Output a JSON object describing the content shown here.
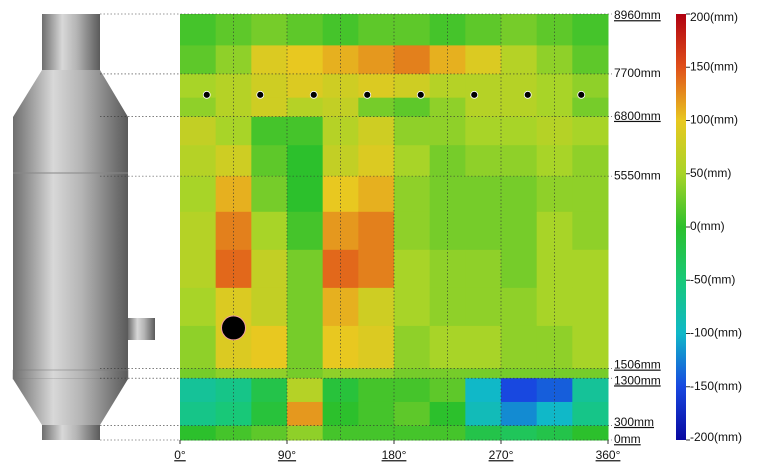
{
  "chart_data": {
    "type": "heatmap",
    "x_bins": [
      0,
      30,
      60,
      90,
      120,
      150,
      180,
      210,
      240,
      270,
      300,
      330,
      360
    ],
    "y_bins": [
      8960,
      8300,
      7700,
      7200,
      6800,
      6200,
      5550,
      4800,
      4000,
      3200,
      2400,
      1506,
      1300,
      800,
      300,
      0
    ],
    "values": [
      [
        10,
        20,
        30,
        20,
        10,
        20,
        20,
        10,
        20,
        30,
        20,
        10
      ],
      [
        20,
        40,
        90,
        100,
        110,
        120,
        130,
        110,
        90,
        60,
        40,
        20
      ],
      [
        50,
        60,
        80,
        90,
        80,
        90,
        80,
        60,
        60,
        60,
        50,
        40
      ],
      [
        40,
        60,
        80,
        60,
        70,
        30,
        20,
        40,
        60,
        60,
        50,
        30
      ],
      [
        70,
        50,
        10,
        10,
        60,
        80,
        40,
        40,
        50,
        50,
        60,
        50
      ],
      [
        60,
        80,
        20,
        0,
        70,
        90,
        50,
        30,
        40,
        40,
        50,
        40
      ],
      [
        50,
        110,
        30,
        0,
        100,
        110,
        40,
        30,
        30,
        30,
        40,
        40
      ],
      [
        60,
        130,
        50,
        10,
        120,
        130,
        40,
        30,
        30,
        30,
        50,
        40
      ],
      [
        60,
        140,
        70,
        30,
        140,
        130,
        50,
        40,
        40,
        30,
        50,
        50
      ],
      [
        50,
        90,
        70,
        30,
        110,
        80,
        50,
        40,
        40,
        40,
        50,
        50
      ],
      [
        40,
        90,
        100,
        30,
        100,
        90,
        40,
        50,
        50,
        40,
        40,
        50
      ],
      [
        30,
        40,
        40,
        30,
        40,
        40,
        30,
        30,
        30,
        30,
        30,
        30
      ],
      [
        -70,
        -60,
        -20,
        60,
        -10,
        10,
        10,
        20,
        -100,
        -150,
        -140,
        -70
      ],
      [
        -60,
        -50,
        -10,
        120,
        0,
        10,
        20,
        0,
        -90,
        -120,
        -100,
        -60
      ],
      [
        0,
        10,
        20,
        40,
        10,
        10,
        10,
        10,
        -20,
        -30,
        -20,
        0
      ]
    ],
    "xlim": [
      0,
      360
    ],
    "xticks": [
      {
        "value": 0,
        "label": "0°"
      },
      {
        "value": 90,
        "label": "90°"
      },
      {
        "value": 180,
        "label": "180°"
      },
      {
        "value": 270,
        "label": "270°"
      },
      {
        "value": 360,
        "label": "360°"
      }
    ],
    "x_grid": [
      45,
      90,
      135,
      180,
      225,
      270,
      315
    ],
    "ylim": [
      0,
      8960
    ],
    "yticks": [
      {
        "value": 8960,
        "label": "8960mm"
      },
      {
        "value": 7700,
        "label": "7700mm"
      },
      {
        "value": 6800,
        "label": "6800mm"
      },
      {
        "value": 5550,
        "label": "5550mm"
      },
      {
        "value": 1506,
        "label": "1506mm"
      },
      {
        "value": 1300,
        "label": "1300mm"
      },
      {
        "value": 300,
        "label": "300mm"
      },
      {
        "value": 0,
        "label": "0mm"
      }
    ],
    "markers": {
      "x": [
        22.5,
        67.5,
        112.5,
        157.5,
        202.5,
        247.5,
        292.5,
        337.5
      ],
      "y": [
        7260,
        7260,
        7260,
        7260,
        7260,
        7260,
        7260,
        7260
      ]
    },
    "large_markers": {
      "x": [
        45
      ],
      "y": [
        2357
      ]
    },
    "colorbar": {
      "lim": [
        -200,
        200
      ],
      "ticks": [
        {
          "value": 200,
          "label": "200(mm)"
        },
        {
          "value": 150,
          "label": "150(mm)"
        },
        {
          "value": 100,
          "label": "100(mm)"
        },
        {
          "value": 50,
          "label": "50(mm)"
        },
        {
          "value": 0,
          "label": "0(mm)"
        },
        {
          "value": -50,
          "label": "-50(mm)"
        },
        {
          "value": -100,
          "label": "-100(mm)"
        },
        {
          "value": -150,
          "label": "-150(mm)"
        },
        {
          "value": -200,
          "label": "-200(mm)"
        }
      ],
      "colors": [
        "#b00010",
        "#e0501a",
        "#e8c820",
        "#a8d428",
        "#2cc02c",
        "#18c878",
        "#10b8c8",
        "#1848e0",
        "#0808a0"
      ]
    }
  }
}
